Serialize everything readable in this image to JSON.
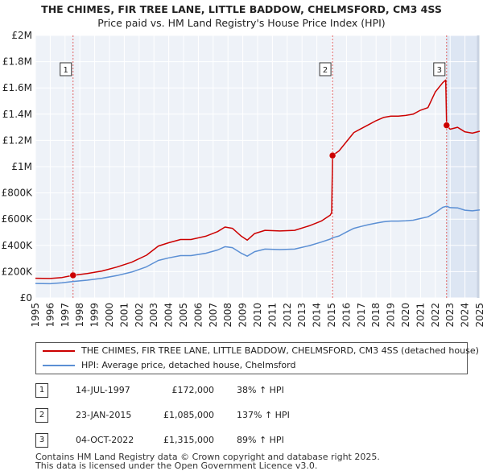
{
  "title_line1": "THE CHIMES, FIR TREE LANE, LITTLE BADDOW, CHELMSFORD, CM3 4SS",
  "title_line2": "Price paid vs. HM Land Registry's House Price Index (HPI)",
  "colors": {
    "property": "#cc0000",
    "hpi": "#5b8fd4",
    "marker_line": "#e06060",
    "shade": "#dde6f3",
    "grid": "#cfd6e0"
  },
  "chart_data": {
    "type": "line",
    "x_range": [
      1995,
      2025
    ],
    "y_range": [
      0,
      2000000
    ],
    "y_ticks": [
      {
        "value": 0,
        "label": "£0"
      },
      {
        "value": 200000,
        "label": "£200K"
      },
      {
        "value": 400000,
        "label": "£400K"
      },
      {
        "value": 600000,
        "label": "£600K"
      },
      {
        "value": 800000,
        "label": "£800K"
      },
      {
        "value": 1000000,
        "label": "£1M"
      },
      {
        "value": 1200000,
        "label": "£1.2M"
      },
      {
        "value": 1400000,
        "label": "£1.4M"
      },
      {
        "value": 1600000,
        "label": "£1.6M"
      },
      {
        "value": 1800000,
        "label": "£1.8M"
      },
      {
        "value": 2000000,
        "label": "£2M"
      }
    ],
    "x_ticks": [
      "1995",
      "1996",
      "1997",
      "1998",
      "1999",
      "2000",
      "2001",
      "2002",
      "2003",
      "2004",
      "2005",
      "2006",
      "2007",
      "2008",
      "2009",
      "2010",
      "2011",
      "2012",
      "2013",
      "2014",
      "2015",
      "2016",
      "2017",
      "2018",
      "2019",
      "2020",
      "2021",
      "2022",
      "2023",
      "2024",
      "2025"
    ],
    "series": [
      {
        "name": "THE CHIMES, FIR TREE LANE, LITTLE BADDOW, CHELMSFORD, CM3 4SS (detached house)",
        "color": "#cc0000",
        "points": [
          [
            1995.0,
            150000
          ],
          [
            1996.0,
            148000
          ],
          [
            1996.8,
            155000
          ],
          [
            1997.54,
            172000
          ],
          [
            1998.5,
            185000
          ],
          [
            1999.5,
            205000
          ],
          [
            2000.5,
            235000
          ],
          [
            2001.5,
            272000
          ],
          [
            2002.5,
            325000
          ],
          [
            2003.3,
            395000
          ],
          [
            2004.0,
            420000
          ],
          [
            2004.8,
            445000
          ],
          [
            2005.5,
            445000
          ],
          [
            2006.5,
            470000
          ],
          [
            2007.3,
            505000
          ],
          [
            2007.8,
            540000
          ],
          [
            2008.3,
            530000
          ],
          [
            2008.9,
            470000
          ],
          [
            2009.3,
            440000
          ],
          [
            2009.8,
            490000
          ],
          [
            2010.5,
            515000
          ],
          [
            2011.5,
            510000
          ],
          [
            2012.5,
            515000
          ],
          [
            2013.5,
            550000
          ],
          [
            2014.3,
            585000
          ],
          [
            2014.9,
            630000
          ],
          [
            2015.0,
            650000
          ],
          [
            2015.06,
            1085000
          ],
          [
            2015.5,
            1120000
          ],
          [
            2016.0,
            1190000
          ],
          [
            2016.5,
            1260000
          ],
          [
            2017.0,
            1290000
          ],
          [
            2017.5,
            1320000
          ],
          [
            2018.0,
            1350000
          ],
          [
            2018.5,
            1375000
          ],
          [
            2019.0,
            1385000
          ],
          [
            2019.5,
            1385000
          ],
          [
            2020.0,
            1390000
          ],
          [
            2020.5,
            1400000
          ],
          [
            2021.0,
            1430000
          ],
          [
            2021.5,
            1450000
          ],
          [
            2022.0,
            1570000
          ],
          [
            2022.5,
            1640000
          ],
          [
            2022.7,
            1660000
          ],
          [
            2022.76,
            1315000
          ],
          [
            2023.0,
            1285000
          ],
          [
            2023.5,
            1300000
          ],
          [
            2024.0,
            1265000
          ],
          [
            2024.5,
            1255000
          ],
          [
            2025.0,
            1270000
          ]
        ]
      },
      {
        "name": "HPI: Average price, detached house, Chelmsford",
        "color": "#5b8fd4",
        "points": [
          [
            1995.0,
            110000
          ],
          [
            1996.0,
            108000
          ],
          [
            1996.8,
            115000
          ],
          [
            1997.54,
            125000
          ],
          [
            1998.5,
            135000
          ],
          [
            1999.5,
            150000
          ],
          [
            2000.5,
            170000
          ],
          [
            2001.5,
            197000
          ],
          [
            2002.5,
            237000
          ],
          [
            2003.3,
            285000
          ],
          [
            2004.0,
            305000
          ],
          [
            2004.8,
            322000
          ],
          [
            2005.5,
            322000
          ],
          [
            2006.5,
            340000
          ],
          [
            2007.3,
            365000
          ],
          [
            2007.8,
            390000
          ],
          [
            2008.3,
            383000
          ],
          [
            2008.9,
            340000
          ],
          [
            2009.3,
            318000
          ],
          [
            2009.8,
            352000
          ],
          [
            2010.5,
            372000
          ],
          [
            2011.5,
            368000
          ],
          [
            2012.5,
            372000
          ],
          [
            2013.5,
            398000
          ],
          [
            2014.3,
            425000
          ],
          [
            2014.9,
            448000
          ],
          [
            2015.06,
            458000
          ],
          [
            2015.5,
            472000
          ],
          [
            2016.0,
            502000
          ],
          [
            2016.5,
            530000
          ],
          [
            2017.0,
            545000
          ],
          [
            2017.5,
            558000
          ],
          [
            2018.0,
            570000
          ],
          [
            2018.5,
            580000
          ],
          [
            2019.0,
            585000
          ],
          [
            2019.5,
            585000
          ],
          [
            2020.0,
            588000
          ],
          [
            2020.5,
            592000
          ],
          [
            2021.0,
            605000
          ],
          [
            2021.5,
            618000
          ],
          [
            2022.0,
            650000
          ],
          [
            2022.5,
            690000
          ],
          [
            2022.76,
            698000
          ],
          [
            2023.0,
            688000
          ],
          [
            2023.5,
            686000
          ],
          [
            2024.0,
            668000
          ],
          [
            2024.5,
            663000
          ],
          [
            2025.0,
            670000
          ]
        ]
      }
    ],
    "sales": [
      {
        "num": "1",
        "x": 1997.54,
        "price": 172000
      },
      {
        "num": "2",
        "x": 2015.06,
        "price": 1085000
      },
      {
        "num": "3",
        "x": 2022.76,
        "price": 1315000
      }
    ]
  },
  "legend": {
    "property": "THE CHIMES, FIR TREE LANE, LITTLE BADDOW, CHELMSFORD, CM3 4SS (detached house)",
    "hpi": "HPI: Average price, detached house, Chelmsford"
  },
  "transactions": [
    {
      "num": "1",
      "date": "14-JUL-1997",
      "price": "£172,000",
      "hpi": "38% ↑ HPI"
    },
    {
      "num": "2",
      "date": "23-JAN-2015",
      "price": "£1,085,000",
      "hpi": "137% ↑ HPI"
    },
    {
      "num": "3",
      "date": "04-OCT-2022",
      "price": "£1,315,000",
      "hpi": "89% ↑ HPI"
    }
  ],
  "footer_line1": "Contains HM Land Registry data © Crown copyright and database right 2025.",
  "footer_line2": "This data is licensed under the Open Government Licence v3.0."
}
